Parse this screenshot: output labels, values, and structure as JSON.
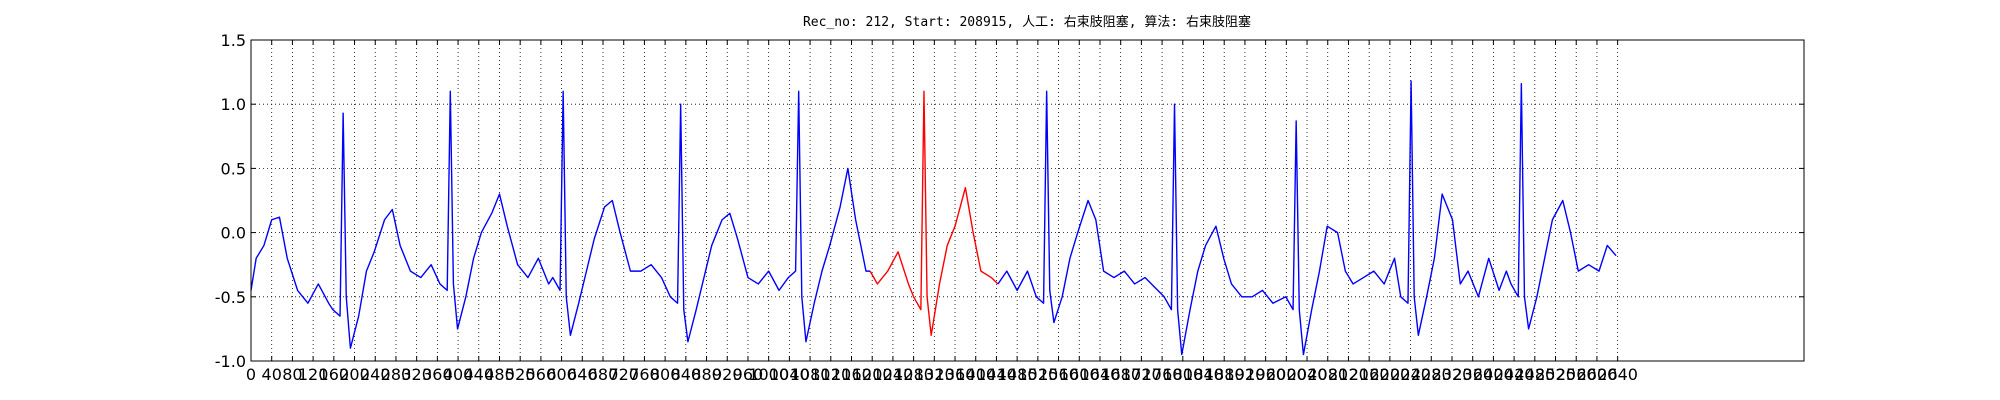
{
  "chart_data": {
    "type": "line",
    "title": "Rec_no: 212, Start: 208915, 人工: 右束肢阻塞, 算法: 右束肢阻塞",
    "xlim": [
      0,
      3000
    ],
    "xticks": [
      0,
      40,
      80,
      120,
      160,
      200,
      240,
      280,
      320,
      360,
      400,
      440,
      480,
      520,
      560,
      600,
      640,
      680,
      720,
      760,
      800,
      840,
      880,
      920,
      960,
      1000,
      1040,
      1080,
      1120,
      1160,
      1200,
      1240,
      1280,
      1320,
      1360,
      1400,
      1440,
      1480,
      1520,
      1560,
      1600,
      1640,
      1680,
      1720,
      1760,
      1800,
      1840,
      1880,
      1920,
      1960,
      2000,
      2040,
      2080,
      2120,
      2160,
      2200,
      2240,
      2280,
      2320,
      2360,
      2400,
      2440,
      2480,
      2520,
      2560,
      2600,
      2640
    ],
    "ylim": [
      -1,
      1.5
    ],
    "yticks": [
      {
        "value": -1,
        "label": "-1.0"
      },
      -0.5,
      {
        "value": 0,
        "label": "0.0"
      },
      0.5,
      {
        "value": 1,
        "label": "1.0"
      },
      1.5
    ],
    "grid": true,
    "series": [
      {
        "color": "#0000ff",
        "x": [
          0,
          10,
          25,
          40,
          55,
          70,
          90,
          110,
          130,
          150,
          158,
          172,
          178,
          184,
          192,
          208,
          223,
          238,
          258,
          273,
          288,
          308,
          328,
          348,
          365,
          379,
          385,
          391,
          399,
          415,
          430,
          445,
          465,
          480,
          495,
          515,
          535,
          555,
          575,
          583,
          597,
          603,
          609,
          617,
          633,
          648,
          663,
          683,
          698,
          713,
          733,
          753,
          773,
          793,
          810,
          824,
          830,
          836,
          844,
          860,
          875,
          890,
          910,
          925,
          940,
          960,
          980,
          1000,
          1020,
          1038,
          1052,
          1058,
          1064,
          1072,
          1088,
          1103,
          1118,
          1138,
          1153,
          1168,
          1188,
          1196
        ],
        "values": [
          -0.45,
          -0.2,
          -0.1,
          0.1,
          0.12,
          -0.2,
          -0.45,
          -0.55,
          -0.4,
          -0.55,
          -0.6,
          -0.65,
          0.93,
          -0.5,
          -0.9,
          -0.65,
          -0.3,
          -0.15,
          0.1,
          0.18,
          -0.1,
          -0.3,
          -0.35,
          -0.25,
          -0.4,
          -0.45,
          1.1,
          -0.4,
          -0.75,
          -0.5,
          -0.2,
          0.0,
          0.15,
          0.3,
          0.05,
          -0.25,
          -0.35,
          -0.2,
          -0.4,
          -0.35,
          -0.45,
          1.1,
          -0.5,
          -0.8,
          -0.55,
          -0.3,
          -0.05,
          0.2,
          0.25,
          0.0,
          -0.3,
          -0.3,
          -0.25,
          -0.35,
          -0.5,
          -0.55,
          1.0,
          -0.6,
          -0.85,
          -0.6,
          -0.35,
          -0.1,
          0.1,
          0.15,
          -0.05,
          -0.35,
          -0.4,
          -0.3,
          -0.45,
          -0.35,
          -0.3,
          1.1,
          -0.5,
          -0.85,
          -0.55,
          -0.3,
          -0.1,
          0.2,
          0.5,
          0.1,
          -0.3,
          -0.3
        ]
      },
      {
        "color": "#ff0000",
        "x": [
          1196,
          1210,
          1230,
          1250,
          1270,
          1280,
          1294,
          1300,
          1306,
          1314,
          1330,
          1345,
          1360,
          1380,
          1395,
          1410,
          1430,
          1443
        ],
        "values": [
          -0.3,
          -0.4,
          -0.3,
          -0.15,
          -0.4,
          -0.5,
          -0.6,
          1.1,
          -0.5,
          -0.8,
          -0.4,
          -0.1,
          0.05,
          0.35,
          0.0,
          -0.3,
          -0.35,
          -0.4
        ]
      },
      {
        "color": "#0000ff",
        "x": [
          1443,
          1460,
          1480,
          1500,
          1517,
          1531,
          1537,
          1543,
          1551,
          1567,
          1582,
          1597,
          1617,
          1632,
          1647,
          1667,
          1687,
          1707,
          1727,
          1764,
          1778,
          1784,
          1790,
          1798,
          1814,
          1829,
          1844,
          1864,
          1879,
          1894,
          1914,
          1934,
          1954,
          1974,
          1999,
          2013,
          2019,
          2025,
          2033,
          2049,
          2064,
          2079,
          2099,
          2114,
          2129,
          2149,
          2169,
          2189,
          2209,
          2221,
          2235,
          2241,
          2247,
          2255,
          2271,
          2286,
          2301,
          2321,
          2336,
          2351,
          2371,
          2391,
          2411,
          2425,
          2434,
          2448,
          2454,
          2460,
          2468,
          2484,
          2499,
          2514,
          2534,
          2549,
          2564,
          2584,
          2604,
          2620,
          2637
        ],
        "values": [
          -0.4,
          -0.3,
          -0.45,
          -0.3,
          -0.5,
          -0.55,
          1.1,
          -0.45,
          -0.7,
          -0.5,
          -0.2,
          0.0,
          0.25,
          0.1,
          -0.3,
          -0.35,
          -0.3,
          -0.4,
          -0.35,
          -0.5,
          -0.6,
          1.0,
          -0.6,
          -0.95,
          -0.6,
          -0.3,
          -0.1,
          0.05,
          -0.2,
          -0.4,
          -0.5,
          -0.5,
          -0.45,
          -0.55,
          -0.5,
          -0.6,
          0.87,
          -0.6,
          -0.95,
          -0.6,
          -0.3,
          0.05,
          0.0,
          -0.3,
          -0.4,
          -0.35,
          -0.3,
          -0.4,
          -0.2,
          -0.5,
          -0.55,
          1.18,
          -0.5,
          -0.8,
          -0.5,
          -0.2,
          0.3,
          0.1,
          -0.4,
          -0.3,
          -0.5,
          -0.2,
          -0.45,
          -0.3,
          -0.4,
          -0.5,
          1.16,
          -0.5,
          -0.75,
          -0.5,
          -0.2,
          0.1,
          0.25,
          0.0,
          -0.3,
          -0.25,
          -0.3,
          -0.1,
          -0.18
        ]
      }
    ]
  }
}
